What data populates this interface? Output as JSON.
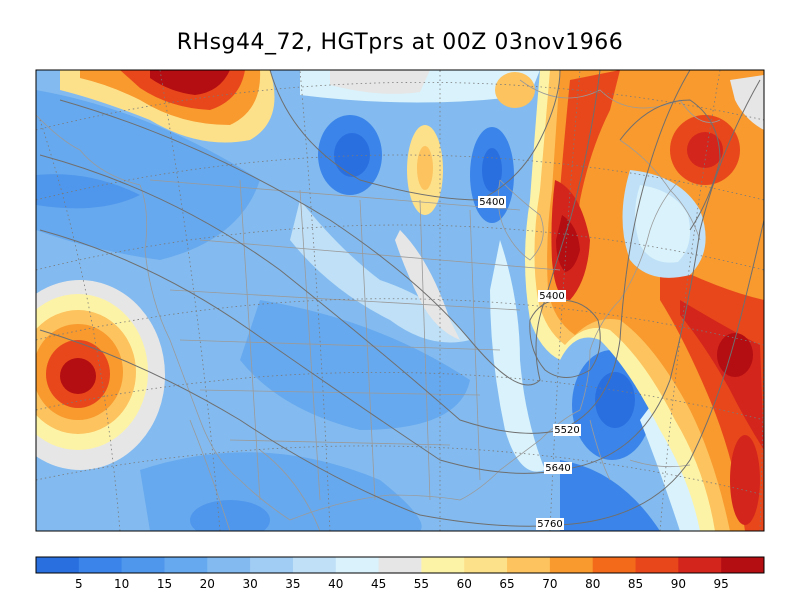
{
  "title": "RHsg44_72, HGTprs at 00Z  03nov1966",
  "contour_labels": [
    "5400",
    "5400",
    "5520",
    "5640",
    "5760"
  ],
  "colorbar": {
    "colors": [
      "#2a6fe0",
      "#3b85ea",
      "#4f97ec",
      "#67a9ee",
      "#83bbf0",
      "#a1ccf4",
      "#bfe0f7",
      "#d9f2fb",
      "#e6e6e6",
      "#fdf3a6",
      "#fde08a",
      "#fcc35f",
      "#f89a2e",
      "#f26a1a",
      "#e8471b",
      "#d3251c",
      "#b40d12"
    ],
    "ticks": [
      "5",
      "10",
      "15",
      "20",
      "30",
      "35",
      "40",
      "45",
      "55",
      "60",
      "65",
      "70",
      "80",
      "85",
      "90",
      "95"
    ]
  },
  "palette": {
    "ocean_blue": "#5a9ee9",
    "land_blue": "#83bbf0",
    "dry_blue": "#2a6fe0",
    "coast": "#9a9a9a",
    "contour": "#6f6f6f"
  }
}
